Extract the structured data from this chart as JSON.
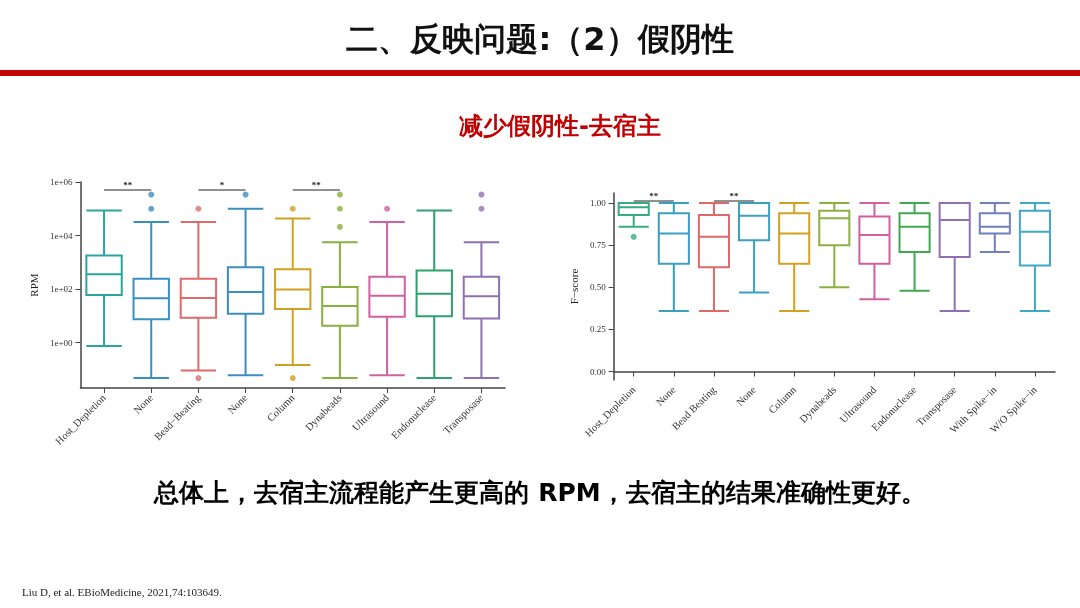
{
  "chart_data": [
    {
      "type": "other",
      "title": "二、反映问题:（2）假阴性",
      "subtitle": "减少假阴性-去宿主",
      "annotations": [
        "总体上，去宿主流程能产生更高的 RPM，去宿主的结果准确性更好。",
        "Liu D, et al. EBioMedicine, 2021,74:103649."
      ]
    },
    {
      "type": "box",
      "ylabel": "RPM",
      "log": "y",
      "categories": [
        "Host_Depletion",
        "None",
        "Bead−Beating",
        "None",
        "Column",
        "Dynabeads",
        "Ultrasound",
        "Endonuclease",
        "Transposase"
      ],
      "colors": [
        "#2aa5a0",
        "#3a8fc0",
        "#e06a6a",
        "#3a8fc0",
        "#d4a020",
        "#8ab040",
        "#d060a0",
        "#30a070",
        "#9070b0"
      ],
      "boxes": [
        {
          "low": 0.75,
          "q1": 60,
          "median": 360,
          "q3": 1800,
          "high": 87000
        },
        {
          "low": 0.047,
          "q1": 7.5,
          "median": 45,
          "q3": 240,
          "high": 32000,
          "outliers": [
            340000,
            100000
          ]
        },
        {
          "low": 0.09,
          "q1": 8.5,
          "median": 46,
          "q3": 240,
          "high": 32000,
          "outliers": [
            100000,
            0.047
          ]
        },
        {
          "low": 0.06,
          "q1": 12,
          "median": 78,
          "q3": 650,
          "high": 100000,
          "outliers": [
            340000
          ]
        },
        {
          "low": 0.145,
          "q1": 18,
          "median": 95,
          "q3": 550,
          "high": 43000,
          "outliers": [
            100000,
            0.047
          ]
        },
        {
          "low": 0.047,
          "q1": 4.2,
          "median": 23,
          "q3": 118,
          "high": 5600,
          "outliers": [
            340000,
            100000,
            21000
          ]
        },
        {
          "low": 0.06,
          "q1": 9.2,
          "median": 56,
          "q3": 290,
          "high": 32000,
          "outliers": [
            100000
          ]
        },
        {
          "low": 0.047,
          "q1": 9.7,
          "median": 67,
          "q3": 490,
          "high": 87000
        },
        {
          "low": 0.047,
          "q1": 8,
          "median": 54,
          "q3": 290,
          "high": 5600,
          "outliers": [
            340000,
            100000
          ]
        }
      ],
      "ylim": [
        0.02,
        1000000
      ],
      "yticks": [
        {
          "value": 1,
          "label": "1e+00"
        },
        {
          "value": 100,
          "label": "1e+02"
        },
        {
          "value": 10000,
          "label": "1e+04"
        },
        {
          "value": 1000000,
          "label": "1e+06"
        }
      ],
      "grid": false,
      "annotations": [
        "**",
        "*",
        "**"
      ]
    },
    {
      "type": "box",
      "ylabel": "F−score",
      "categories": [
        "Host_Depletion",
        "None",
        "Bead Beating",
        "None",
        "Column",
        "Dynabeads",
        "Ultrasound",
        "Endonuclease",
        "Transposase",
        "With Spike−in",
        "W/O Spike−in"
      ],
      "colors": [
        "#3aaa80",
        "#3a9fc0",
        "#e06a6a",
        "#3a9fc0",
        "#d4a020",
        "#8ab040",
        "#d060a0",
        "#40a850",
        "#9070b0",
        "#7080c0",
        "#40a8c8"
      ],
      "boxes": [
        {
          "low": 0.86,
          "q1": 0.93,
          "median": 0.975,
          "q3": 1.0,
          "high": 1.0,
          "outliers": [
            0.8
          ]
        },
        {
          "low": 0.36,
          "q1": 0.64,
          "median": 0.82,
          "q3": 0.94,
          "high": 1.0
        },
        {
          "low": 0.36,
          "q1": 0.62,
          "median": 0.8,
          "q3": 0.93,
          "high": 1.0
        },
        {
          "low": 0.47,
          "q1": 0.78,
          "median": 0.925,
          "q3": 1.0,
          "high": 1.0
        },
        {
          "low": 0.36,
          "q1": 0.64,
          "median": 0.82,
          "q3": 0.94,
          "high": 1.0
        },
        {
          "low": 0.5,
          "q1": 0.75,
          "median": 0.91,
          "q3": 0.955,
          "high": 1.0
        },
        {
          "low": 0.43,
          "q1": 0.64,
          "median": 0.81,
          "q3": 0.92,
          "high": 1.0
        },
        {
          "low": 0.48,
          "q1": 0.71,
          "median": 0.86,
          "q3": 0.94,
          "high": 1.0
        },
        {
          "low": 0.36,
          "q1": 0.68,
          "median": 0.9,
          "q3": 1.0,
          "high": 1.0
        },
        {
          "low": 0.71,
          "q1": 0.82,
          "median": 0.86,
          "q3": 0.94,
          "high": 1.0
        },
        {
          "low": 0.36,
          "q1": 0.63,
          "median": 0.83,
          "q3": 0.955,
          "high": 1.0
        }
      ],
      "ylim": [
        -0.05,
        1.06
      ],
      "yticks": [
        {
          "value": 0,
          "label": "0.00"
        },
        {
          "value": 0.25,
          "label": "0.25"
        },
        {
          "value": 0.5,
          "label": "0.50"
        },
        {
          "value": 0.75,
          "label": "0.75"
        },
        {
          "value": 1,
          "label": "1.00"
        }
      ],
      "grid": false,
      "annotations": [
        "**",
        "**"
      ]
    }
  ]
}
